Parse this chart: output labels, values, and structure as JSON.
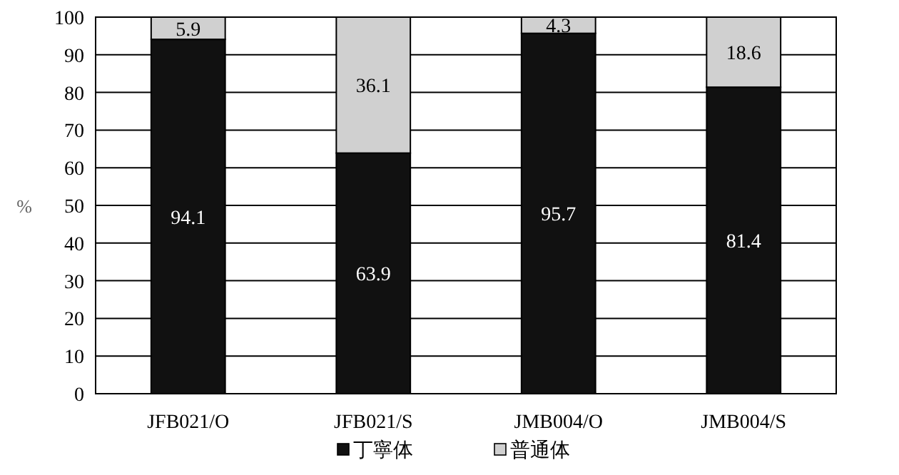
{
  "chart_data": {
    "type": "bar",
    "stacked": true,
    "categories": [
      "JFB021/O",
      "JFB021/S",
      "JMB004/O",
      "JMB004/S"
    ],
    "series": [
      {
        "name": "丁寧体",
        "color": "#111111",
        "values": [
          94.1,
          63.9,
          95.7,
          81.4
        ]
      },
      {
        "name": "普通体",
        "color": "#d0d0d0",
        "values": [
          5.9,
          36.1,
          4.3,
          18.6
        ]
      }
    ],
    "ylabel": "%",
    "ylim": [
      0,
      100
    ],
    "yticks": [
      0,
      10,
      20,
      30,
      40,
      50,
      60,
      70,
      80,
      90,
      100
    ],
    "grid": "y",
    "legend": "bottom",
    "data_labels": true
  }
}
